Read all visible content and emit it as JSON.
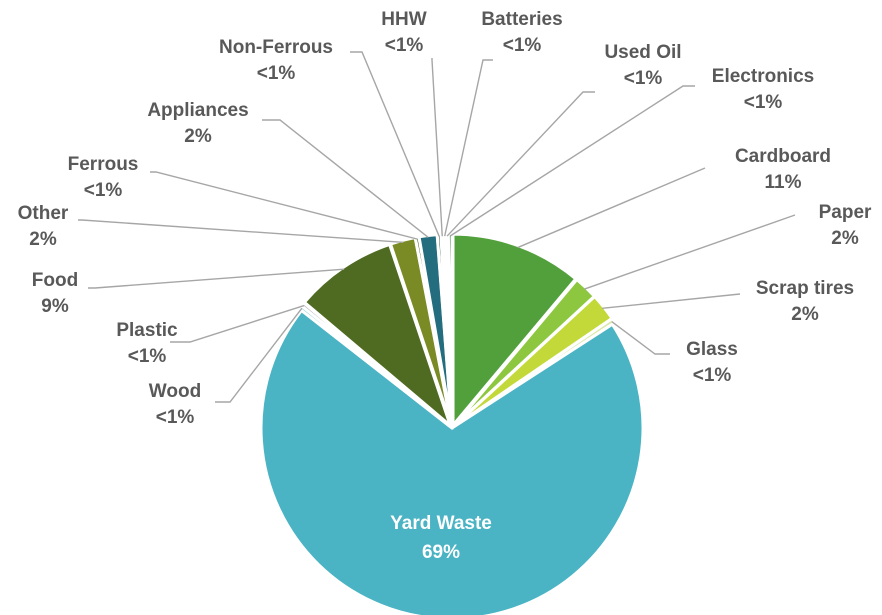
{
  "chart_data": {
    "type": "pie",
    "title": "",
    "slices": [
      {
        "name": "Cardboard",
        "label": "11%",
        "value": 11.0,
        "color": "#52A03C"
      },
      {
        "name": "Paper",
        "label": "2%",
        "value": 2.0,
        "color": "#8DC63F"
      },
      {
        "name": "Scrap tires",
        "label": "2%",
        "value": 2.3,
        "color": "#C3D93A"
      },
      {
        "name": "Glass",
        "label": "<1%",
        "value": 0.4,
        "color": "#D9E8A8"
      },
      {
        "name": "Yard Waste",
        "label": "69%",
        "value": 69.0,
        "color": "#4AB3C4"
      },
      {
        "name": "Wood",
        "label": "<1%",
        "value": 0.3,
        "color": "#7FCBD6"
      },
      {
        "name": "Plastic",
        "label": "<1%",
        "value": 0.3,
        "color": "#A8A8A8"
      },
      {
        "name": "Food",
        "label": "9%",
        "value": 8.6,
        "color": "#4F6B22"
      },
      {
        "name": "Other",
        "label": "2%",
        "value": 2.1,
        "color": "#7A8B25"
      },
      {
        "name": "Ferrous",
        "label": "<1%",
        "value": 0.3,
        "color": "#3F5A1E"
      },
      {
        "name": "Appliances",
        "label": "2%",
        "value": 1.5,
        "color": "#246D7E"
      },
      {
        "name": "Non-Ferrous",
        "label": "<1%",
        "value": 0.3,
        "color": "#2F4F2F"
      },
      {
        "name": "HHW",
        "label": "<1%",
        "value": 0.2,
        "color": "#1F5F6B"
      },
      {
        "name": "Batteries",
        "label": "<1%",
        "value": 0.2,
        "color": "#6F8F3A"
      },
      {
        "name": "Used Oil",
        "label": "<1%",
        "value": 0.2,
        "color": "#5C7A2F"
      },
      {
        "name": "Electronics",
        "label": "<1%",
        "value": 0.3,
        "color": "#3F7F3A"
      }
    ],
    "legend": "none",
    "labels_on_chart": true
  }
}
